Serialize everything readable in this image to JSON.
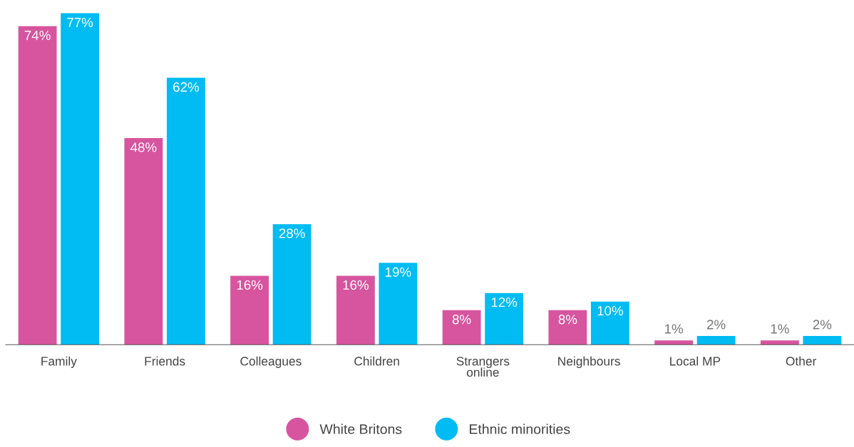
{
  "chart_data": {
    "type": "bar",
    "categories": [
      "Family",
      "Friends",
      "Colleagues",
      "Children",
      "Strangers\nonline",
      "Neighbours",
      "Local MP",
      "Other"
    ],
    "series": [
      {
        "name": "White Britons",
        "color": "#d6559e",
        "values": [
          74,
          48,
          16,
          16,
          8,
          8,
          1,
          1
        ],
        "value_labels": [
          "74%",
          "48%",
          "16%",
          "16%",
          "8%",
          "8%",
          "1%",
          "1%"
        ]
      },
      {
        "name": "Ethnic minorities",
        "color": "#00bcf2",
        "values": [
          77,
          62,
          28,
          19,
          12,
          10,
          2,
          2
        ],
        "value_labels": [
          "77%",
          "62%",
          "28%",
          "19%",
          "12%",
          "10%",
          "2%",
          "2%"
        ]
      }
    ],
    "tick_labels": "x",
    "grid": false,
    "legend": "bottom"
  }
}
